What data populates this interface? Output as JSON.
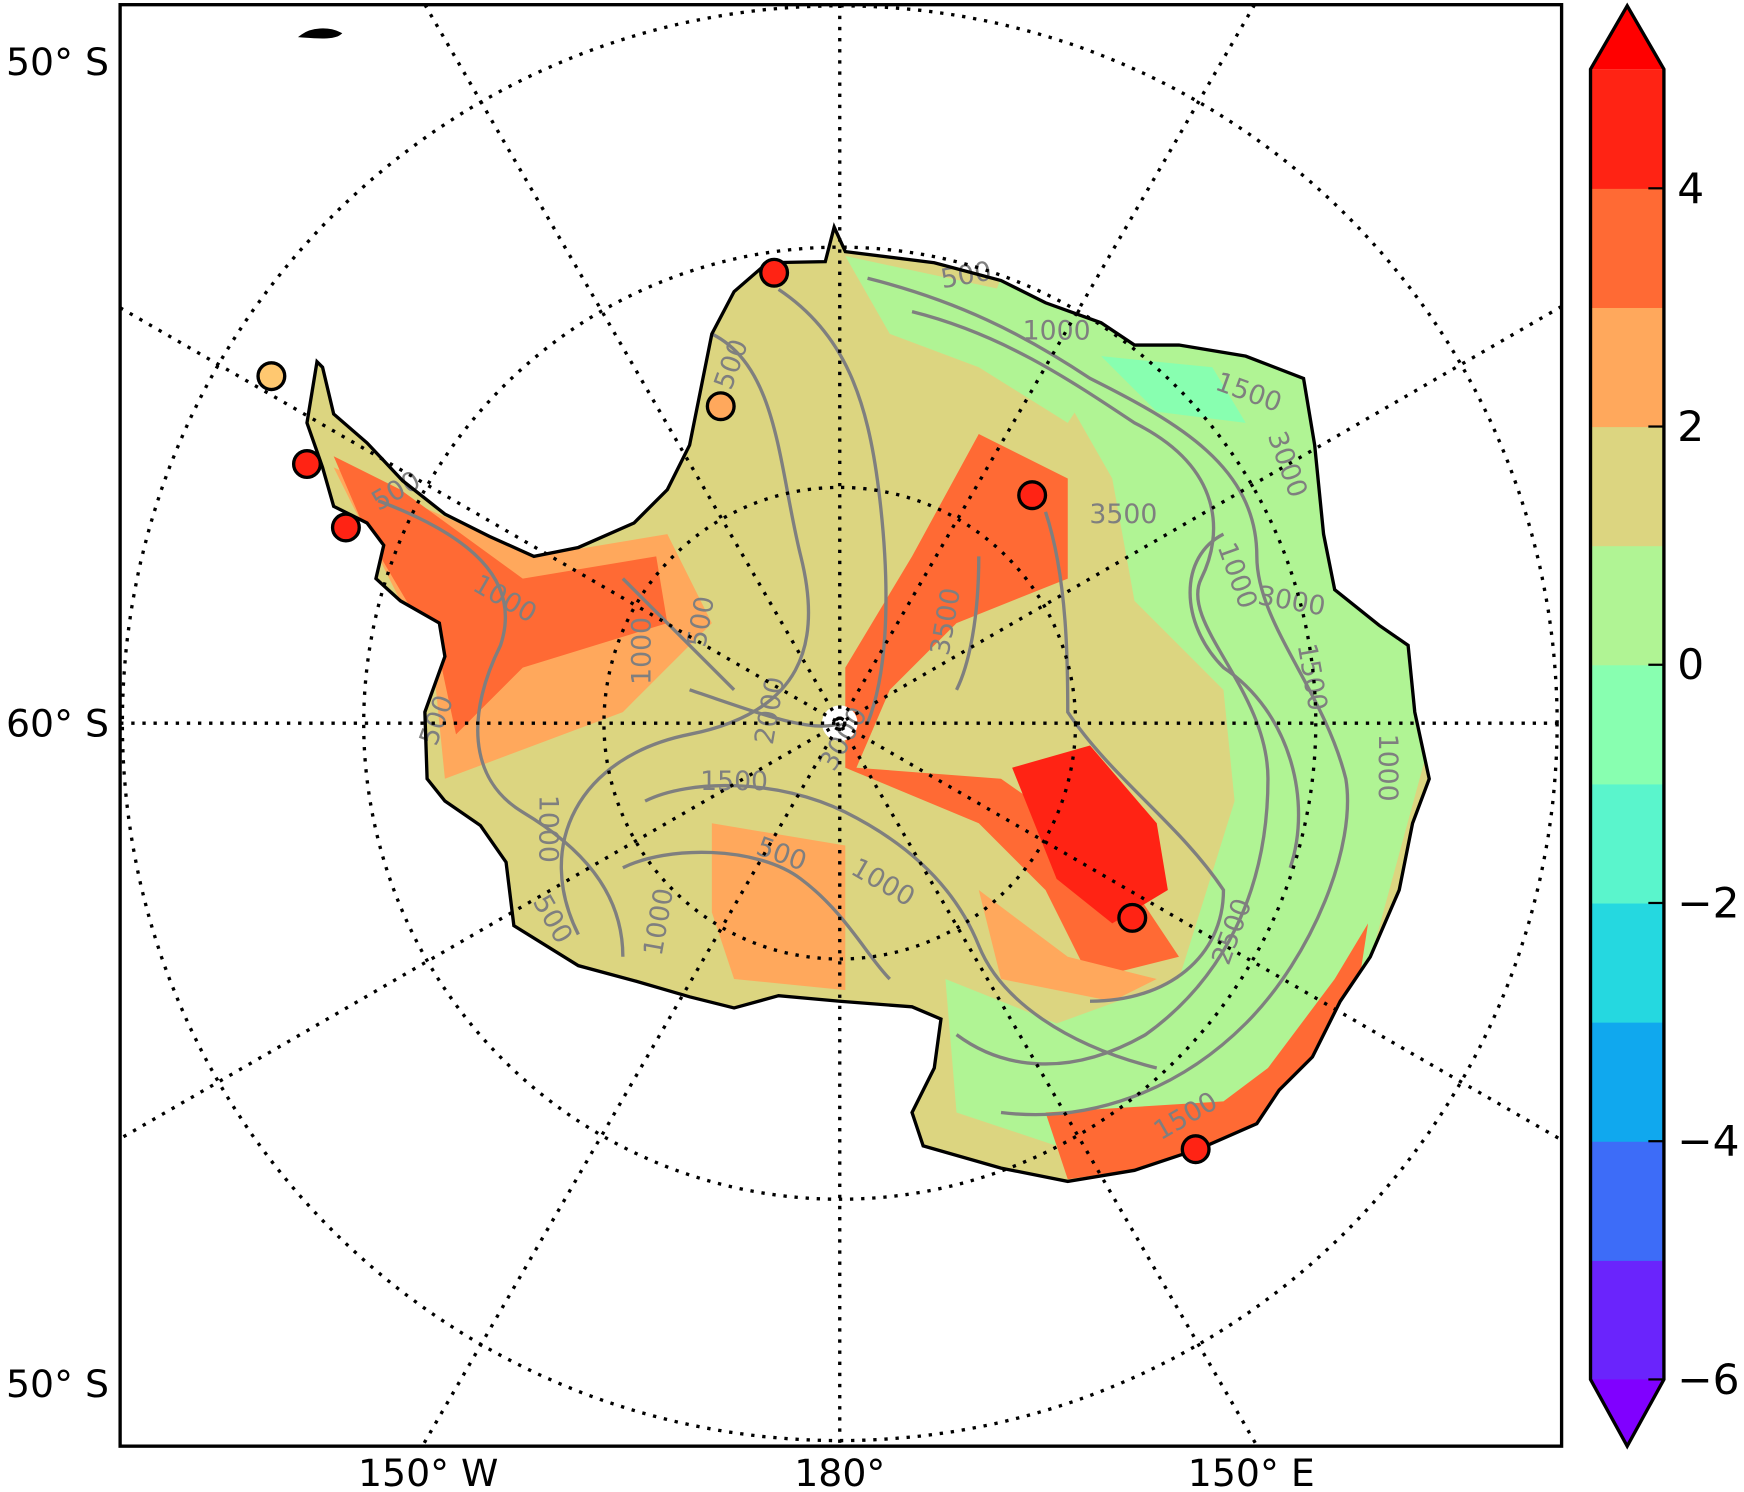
{
  "chart_data": {
    "type": "map",
    "projection": "south-polar stereographic",
    "left_labels": [
      "50° S",
      "60° S",
      "50° S"
    ],
    "bottom_labels": [
      "150° W",
      "180°",
      "150° E"
    ],
    "colorbar": {
      "levels": [
        -6,
        -5,
        -4,
        -3,
        -2,
        -1,
        0,
        1,
        2,
        3,
        4,
        5
      ],
      "tick_labels": [
        "4",
        "2",
        "0",
        "−2",
        "−4",
        "−6"
      ],
      "tick_values": [
        4,
        2,
        0,
        -2,
        -4,
        -6
      ],
      "colors": [
        "#6a24fc",
        "#3d6cf8",
        "#10a8ee",
        "#25d8e0",
        "#5af5cc",
        "#88ffb0",
        "#b0f494",
        "#dcd580",
        "#ffa85c",
        "#ff6a34",
        "#ff2314"
      ],
      "over_color": "#ff0000",
      "under_color": "#8000ff",
      "extend": "both"
    },
    "contour_labels": [
      "500",
      "1000",
      "1500",
      "500",
      "3500",
      "500",
      "1000",
      "500",
      "1000",
      "3000",
      "500",
      "2000",
      "3500",
      "3000",
      "1500",
      "1000",
      "500",
      "1000",
      "1500",
      "1000",
      "500",
      "2500",
      "1500",
      "1000",
      "3000",
      "1000"
    ],
    "stations": [
      {
        "value": 4.5
      },
      {
        "value": 2.5
      },
      {
        "value": 2.2
      },
      {
        "value": 4.5
      },
      {
        "value": 4.5
      },
      {
        "value": 4.6
      },
      {
        "value": 4.2
      },
      {
        "value": 4.5
      }
    ],
    "grid": true
  }
}
